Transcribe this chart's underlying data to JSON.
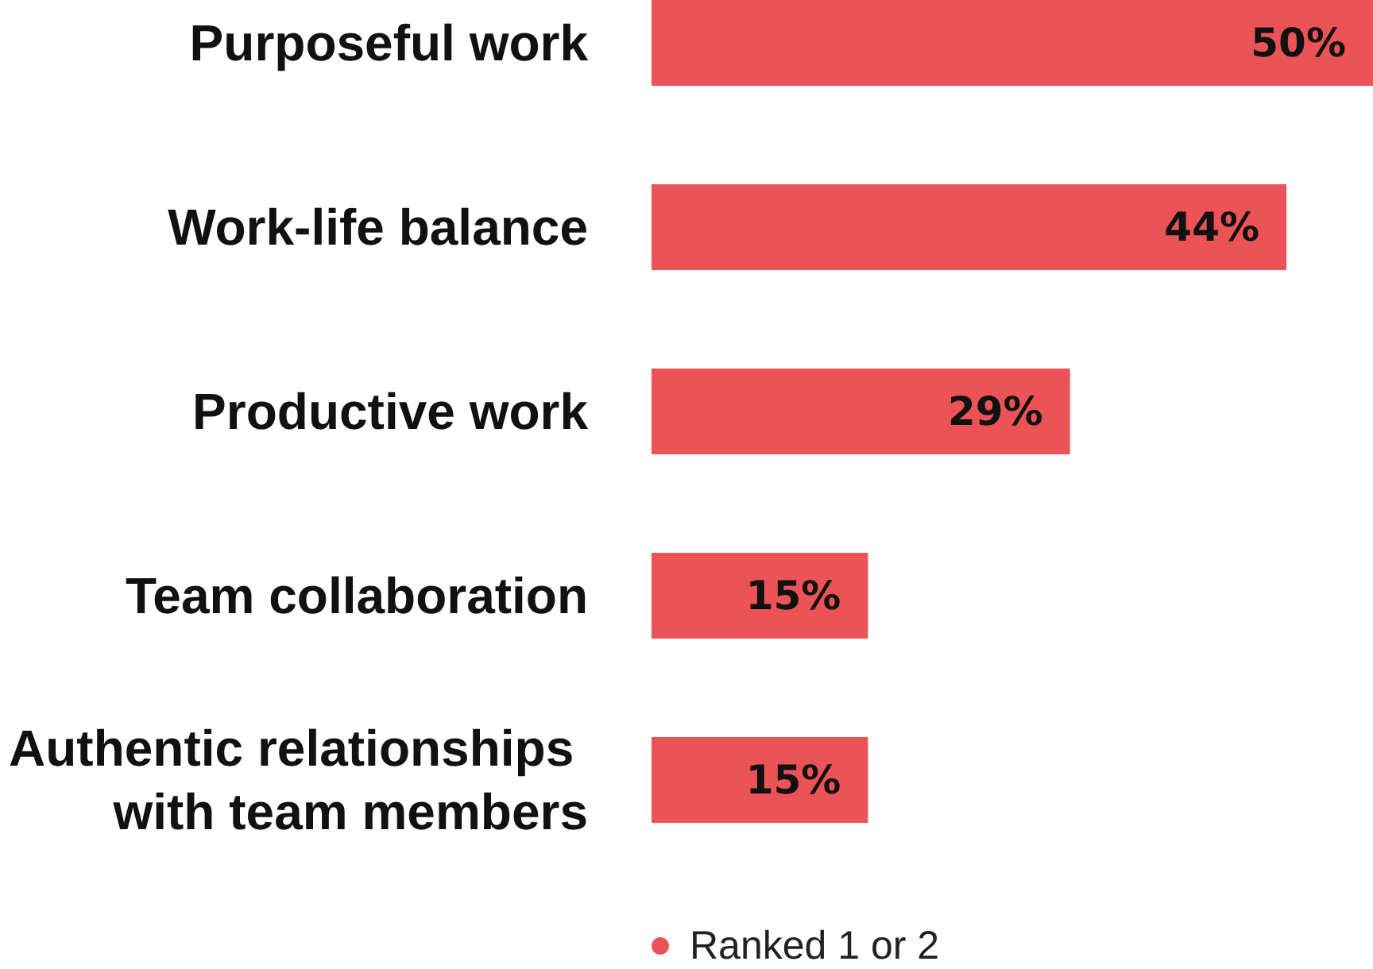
{
  "chart_data": {
    "type": "bar",
    "orientation": "horizontal",
    "categories": [
      "Purposeful work",
      "Work-life balance",
      "Productive work",
      "Team collaboration",
      "Authentic relationships with team members"
    ],
    "series": [
      {
        "name": "Ranked 1 or 2",
        "color": "#ec5357",
        "values": [
          50,
          44,
          29,
          15,
          15
        ],
        "value_labels": [
          "50%",
          "44%",
          "29%",
          "15%",
          "15%"
        ]
      }
    ],
    "legend": "bottom",
    "grid": false,
    "tick_labels": "y"
  }
}
